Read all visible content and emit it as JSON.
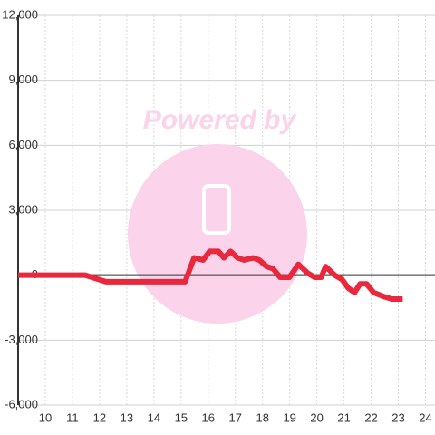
{
  "chart_data": {
    "type": "line",
    "watermark": "Powered by",
    "x": [
      9,
      11.47,
      11.97,
      12.24,
      14.81,
      15.15,
      15.48,
      15.81,
      16.05,
      16.38,
      16.58,
      16.82,
      17.08,
      17.32,
      17.65,
      17.88,
      18.15,
      18.39,
      18.65,
      18.99,
      19.32,
      19.66,
      19.92,
      20.16,
      20.32,
      20.66,
      20.93,
      21.16,
      21.39,
      21.59,
      21.83,
      22.09,
      22.49,
      22.76,
      23.16
    ],
    "series": [
      {
        "color": "#e8283c",
        "values": [
          0,
          0,
          -200,
          -300,
          -300,
          -300,
          800,
          700,
          1100,
          1100,
          800,
          1100,
          800,
          700,
          800,
          700,
          400,
          300,
          -100,
          -100,
          500,
          100,
          -100,
          -100,
          400,
          0,
          -200,
          -600,
          -800,
          -400,
          -400,
          -800,
          -1000,
          -1100,
          -1100
        ]
      }
    ],
    "xlim": [
      9,
      24.35
    ],
    "xticks": [
      10,
      11,
      12,
      13,
      14,
      15,
      16,
      17,
      18,
      19,
      20,
      21,
      22,
      23,
      24
    ],
    "ylim": [
      -6000,
      12000
    ],
    "yticks": [
      {
        "value": -6000,
        "label": "-6,000"
      },
      {
        "value": -3000,
        "label": "-3,000"
      },
      0,
      {
        "value": 3000,
        "label": "3,000"
      },
      {
        "value": 6000,
        "label": "6,000"
      },
      {
        "value": 9000,
        "label": "9,000"
      },
      {
        "value": 12000,
        "label": "12,000"
      }
    ],
    "grid": true
  }
}
